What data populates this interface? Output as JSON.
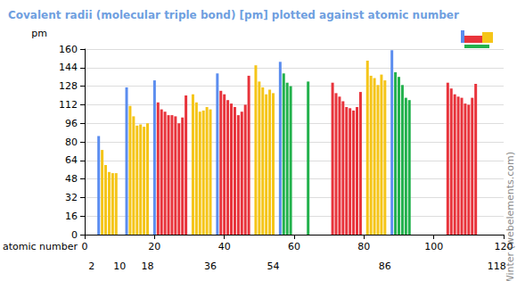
{
  "chart_data": {
    "type": "bar",
    "title": "Covalent radii (molecular triple bond) [pm] plotted against atomic number",
    "y_label": "pm",
    "x_label": "atomic number",
    "annotation": "© Mark Winter (webelements.com)",
    "x": [
      4,
      5,
      6,
      7,
      8,
      9,
      12,
      13,
      14,
      15,
      16,
      17,
      18,
      20,
      21,
      22,
      23,
      24,
      25,
      26,
      27,
      28,
      29,
      31,
      32,
      33,
      34,
      35,
      36,
      38,
      39,
      40,
      41,
      42,
      43,
      44,
      45,
      46,
      47,
      49,
      50,
      51,
      52,
      53,
      54,
      56,
      57,
      58,
      59,
      64,
      71,
      72,
      73,
      74,
      75,
      76,
      77,
      78,
      79,
      81,
      82,
      83,
      84,
      85,
      86,
      88,
      89,
      90,
      91,
      92,
      93,
      104,
      105,
      106,
      107,
      108,
      109,
      110,
      111,
      112
    ],
    "values": [
      85,
      73,
      60,
      54,
      53,
      53,
      127,
      111,
      102,
      94,
      95,
      93,
      96,
      133,
      114,
      108,
      106,
      103,
      103,
      102,
      96,
      101,
      120,
      121,
      114,
      106,
      107,
      110,
      108,
      139,
      124,
      121,
      116,
      113,
      110,
      103,
      106,
      112,
      137,
      146,
      132,
      127,
      121,
      125,
      122,
      149,
      139,
      131,
      128,
      132,
      131,
      122,
      119,
      115,
      110,
      109,
      107,
      110,
      123,
      150,
      137,
      135,
      129,
      138,
      133,
      159,
      140,
      136,
      129,
      118,
      116,
      131,
      126,
      121,
      119,
      118,
      113,
      112,
      118,
      130
    ],
    "colors": [
      "#5b8def",
      "#f5c518",
      "#f5c518",
      "#f5c518",
      "#f5c518",
      "#f5c518",
      "#5b8def",
      "#f5c518",
      "#f5c518",
      "#f5c518",
      "#f5c518",
      "#f5c518",
      "#f5c518",
      "#5b8def",
      "#e8333b",
      "#e8333b",
      "#e8333b",
      "#e8333b",
      "#e8333b",
      "#e8333b",
      "#e8333b",
      "#e8333b",
      "#e8333b",
      "#f5c518",
      "#f5c518",
      "#f5c518",
      "#f5c518",
      "#f5c518",
      "#f5c518",
      "#5b8def",
      "#e8333b",
      "#e8333b",
      "#e8333b",
      "#e8333b",
      "#e8333b",
      "#e8333b",
      "#e8333b",
      "#e8333b",
      "#e8333b",
      "#f5c518",
      "#f5c518",
      "#f5c518",
      "#f5c518",
      "#f5c518",
      "#f5c518",
      "#5b8def",
      "#22b14c",
      "#22b14c",
      "#22b14c",
      "#22b14c",
      "#e8333b",
      "#e8333b",
      "#e8333b",
      "#e8333b",
      "#e8333b",
      "#e8333b",
      "#e8333b",
      "#e8333b",
      "#e8333b",
      "#f5c518",
      "#f5c518",
      "#f5c518",
      "#f5c518",
      "#f5c518",
      "#f5c518",
      "#5b8def",
      "#22b14c",
      "#22b14c",
      "#22b14c",
      "#22b14c",
      "#22b14c",
      "#e8333b",
      "#e8333b",
      "#e8333b",
      "#e8333b",
      "#e8333b",
      "#e8333b",
      "#e8333b",
      "#e8333b",
      "#e8333b"
    ],
    "xlim": [
      0,
      120
    ],
    "xticks": [
      0,
      20,
      40,
      60,
      80,
      100,
      120
    ],
    "x2ticks": [
      2,
      10,
      18,
      36,
      54,
      86,
      118
    ],
    "ylim": [
      0,
      160
    ],
    "yticks": [
      0,
      16,
      32,
      48,
      64,
      80,
      96,
      112,
      128,
      144,
      160
    ],
    "grid": true
  }
}
